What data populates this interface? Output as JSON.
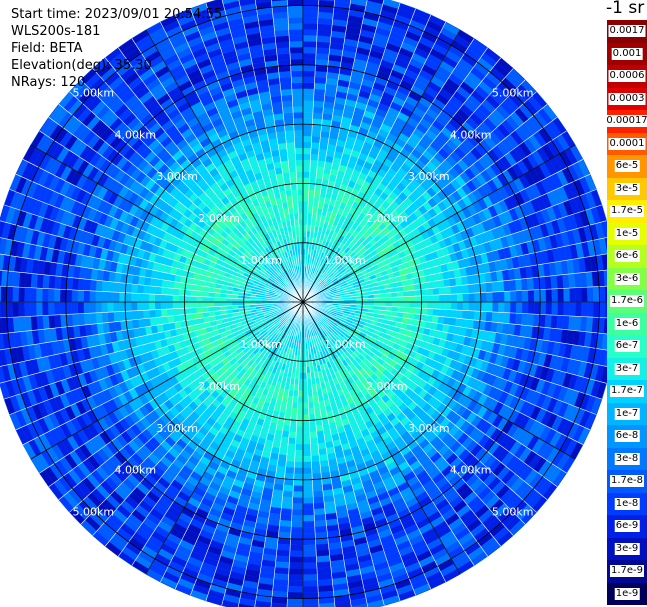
{
  "info": {
    "start_time": "Start time: 2023/09/01 20:54:55",
    "instrument": "WLS200s-181",
    "field": "Field: BETA",
    "elevation": "Elevation(deg): 35.30",
    "nrays": "NRays: 120"
  },
  "units_label": "-1 sr",
  "chart_data": {
    "type": "heatmap",
    "projection": "polar-ppi",
    "n_rays": 120,
    "max_range_km": 5.3,
    "range_rings_km": [
      1,
      2,
      3,
      4,
      5
    ],
    "ring_labels": [
      "1.00km",
      "2.00km",
      "3.00km",
      "4.00km",
      "5.00km"
    ],
    "spoke_azimuths_deg": [
      0,
      30,
      60,
      90,
      120,
      150,
      180,
      210,
      240,
      270,
      300,
      330
    ],
    "value_profile": [
      {
        "range_km": 0.0,
        "value": "1e-7"
      },
      {
        "range_km": 1.0,
        "value": "3e-7"
      },
      {
        "range_km": 1.8,
        "value": "6e-7"
      },
      {
        "range_km": 2.6,
        "value": "1.7e-7"
      },
      {
        "range_km": 3.2,
        "value": "6e-8"
      },
      {
        "range_km": 4.0,
        "value": "1e-8"
      },
      {
        "range_km": 5.0,
        "value": "1e-8"
      }
    ],
    "colorbar": {
      "labels": [
        "0.0017",
        "0.001",
        "0.0006",
        "0.0003",
        "0.00017",
        "0.0001",
        "6e-5",
        "3e-5",
        "1.7e-5",
        "1e-5",
        "6e-6",
        "3e-6",
        "1.7e-6",
        "1e-6",
        "6e-7",
        "3e-7",
        "1.7e-7",
        "1e-7",
        "6e-8",
        "3e-8",
        "1.7e-8",
        "1e-8",
        "6e-9",
        "3e-9",
        "1.7e-9",
        "1e-9"
      ],
      "colors": [
        "#8b0000",
        "#a00000",
        "#c00000",
        "#e00000",
        "#ff2000",
        "#ff5a00",
        "#ff9600",
        "#ffc800",
        "#ffee00",
        "#e6ff00",
        "#b4ff1e",
        "#82ff46",
        "#5aff78",
        "#3cffa0",
        "#28ffc8",
        "#14f0e6",
        "#00d2ff",
        "#00b4ff",
        "#0096ff",
        "#0078ff",
        "#005aff",
        "#003cff",
        "#0020e6",
        "#0010c0",
        "#000896",
        "#00005a"
      ]
    }
  }
}
